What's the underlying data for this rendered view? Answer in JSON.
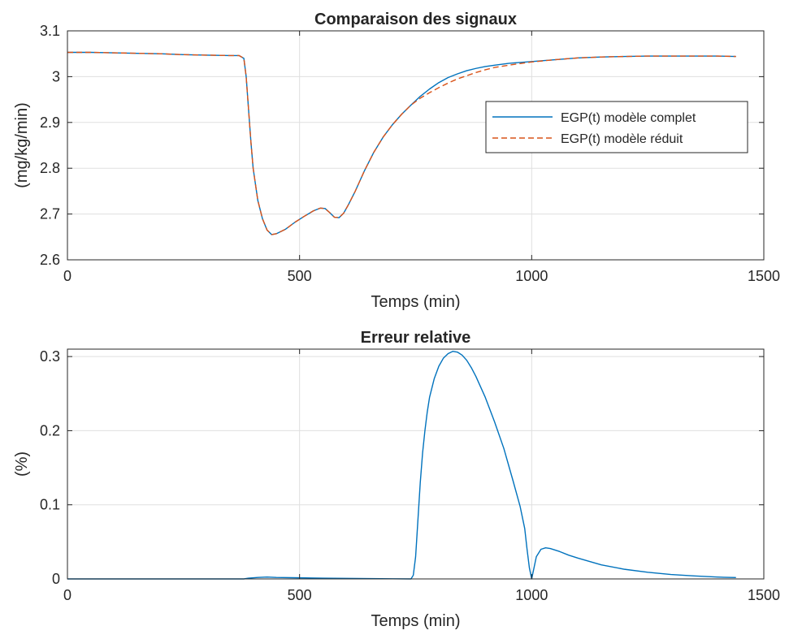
{
  "chart_data": [
    {
      "type": "line",
      "title": "Comparaison des signaux",
      "xlabel": "Temps (min)",
      "ylabel": "(mg/kg/min)",
      "xlim": [
        0,
        1500
      ],
      "ylim": [
        2.6,
        3.1
      ],
      "xticks": [
        0,
        500,
        1000,
        1500
      ],
      "xtick_labels": [
        "0",
        "500",
        "1000",
        "1500"
      ],
      "yticks": [
        2.6,
        2.7,
        2.8,
        2.9,
        3.0,
        3.1
      ],
      "ytick_labels": [
        "2.6",
        "2.7",
        "2.8",
        "2.9",
        "3",
        "3.1"
      ],
      "grid": true,
      "legend": "right",
      "series": [
        {
          "name": "EGP(t) modèle complet",
          "color": "#0072BD",
          "style": "solid",
          "x": [
            0,
            50,
            100,
            150,
            200,
            250,
            300,
            350,
            370,
            380,
            385,
            390,
            395,
            400,
            410,
            420,
            430,
            440,
            450,
            470,
            490,
            510,
            530,
            545,
            555,
            565,
            575,
            585,
            595,
            605,
            620,
            640,
            660,
            680,
            700,
            720,
            740,
            760,
            780,
            800,
            820,
            840,
            860,
            880,
            900,
            920,
            950,
            1000,
            1050,
            1100,
            1150,
            1200,
            1250,
            1300,
            1350,
            1400,
            1440
          ],
          "values": [
            3.053,
            3.053,
            3.052,
            3.051,
            3.05,
            3.048,
            3.047,
            3.046,
            3.046,
            3.04,
            3.0,
            2.93,
            2.86,
            2.8,
            2.73,
            2.69,
            2.665,
            2.655,
            2.657,
            2.667,
            2.682,
            2.695,
            2.707,
            2.713,
            2.712,
            2.703,
            2.693,
            2.692,
            2.702,
            2.72,
            2.75,
            2.795,
            2.835,
            2.868,
            2.895,
            2.918,
            2.938,
            2.957,
            2.973,
            2.987,
            2.998,
            3.006,
            3.013,
            3.018,
            3.022,
            3.025,
            3.029,
            3.033,
            3.037,
            3.041,
            3.043,
            3.044,
            3.045,
            3.045,
            3.045,
            3.045,
            3.044
          ]
        },
        {
          "name": "EGP(t) modèle réduit",
          "color": "#D95319",
          "style": "dashed",
          "x": [
            0,
            50,
            100,
            150,
            200,
            250,
            300,
            350,
            370,
            380,
            385,
            390,
            395,
            400,
            410,
            420,
            430,
            440,
            450,
            470,
            490,
            510,
            530,
            545,
            555,
            565,
            575,
            585,
            595,
            605,
            620,
            640,
            660,
            680,
            700,
            720,
            740,
            760,
            780,
            800,
            820,
            840,
            860,
            880,
            900,
            920,
            950,
            1000,
            1050,
            1100,
            1150,
            1200,
            1250,
            1300,
            1350,
            1400,
            1440
          ],
          "values": [
            3.053,
            3.053,
            3.052,
            3.051,
            3.05,
            3.048,
            3.047,
            3.046,
            3.046,
            3.04,
            3.0,
            2.93,
            2.86,
            2.8,
            2.73,
            2.69,
            2.665,
            2.655,
            2.657,
            2.667,
            2.682,
            2.695,
            2.707,
            2.713,
            2.712,
            2.703,
            2.693,
            2.692,
            2.702,
            2.72,
            2.75,
            2.795,
            2.835,
            2.868,
            2.895,
            2.918,
            2.938,
            2.953,
            2.965,
            2.976,
            2.986,
            2.995,
            3.002,
            3.009,
            3.015,
            3.02,
            3.025,
            3.032,
            3.037,
            3.041,
            3.043,
            3.044,
            3.045,
            3.045,
            3.045,
            3.045,
            3.044
          ]
        }
      ]
    },
    {
      "type": "line",
      "title": "Erreur relative",
      "xlabel": "Temps (min)",
      "ylabel": "(%)",
      "xlim": [
        0,
        1500
      ],
      "ylim": [
        0,
        0.31
      ],
      "xticks": [
        0,
        500,
        1000,
        1500
      ],
      "xtick_labels": [
        "0",
        "500",
        "1000",
        "1500"
      ],
      "yticks": [
        0,
        0.1,
        0.2,
        0.3
      ],
      "ytick_labels": [
        "0",
        "0.1",
        "0.2",
        "0.3"
      ],
      "grid": true,
      "series": [
        {
          "color": "#0072BD",
          "style": "solid",
          "x": [
            0,
            380,
            390,
            410,
            430,
            450,
            500,
            550,
            600,
            650,
            700,
            740,
            745,
            750,
            755,
            760,
            765,
            770,
            775,
            780,
            790,
            800,
            810,
            820,
            830,
            840,
            850,
            860,
            870,
            880,
            900,
            920,
            940,
            960,
            975,
            985,
            990,
            995,
            1000,
            1005,
            1010,
            1020,
            1030,
            1040,
            1060,
            1080,
            1100,
            1150,
            1200,
            1250,
            1300,
            1350,
            1400,
            1440
          ],
          "values": [
            0,
            0,
            0.001,
            0.002,
            0.0025,
            0.002,
            0.0015,
            0.001,
            0.0008,
            0.0005,
            0.0002,
            0,
            0.005,
            0.03,
            0.08,
            0.13,
            0.17,
            0.2,
            0.225,
            0.245,
            0.27,
            0.287,
            0.298,
            0.304,
            0.307,
            0.306,
            0.302,
            0.295,
            0.285,
            0.273,
            0.245,
            0.212,
            0.176,
            0.132,
            0.098,
            0.068,
            0.04,
            0.015,
            0.0,
            0.015,
            0.03,
            0.04,
            0.042,
            0.041,
            0.037,
            0.032,
            0.028,
            0.019,
            0.013,
            0.009,
            0.006,
            0.004,
            0.0025,
            0.0018
          ]
        }
      ]
    }
  ]
}
